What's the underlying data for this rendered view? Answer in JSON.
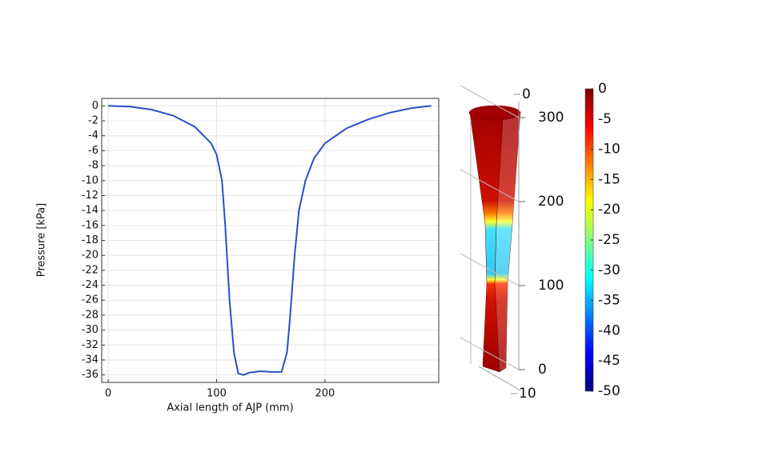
{
  "chart_data": [
    {
      "type": "line",
      "x_label": "Axial length of AJP (mm)",
      "y_label": "Pressure [kPa]",
      "x": [
        0,
        20,
        40,
        60,
        80,
        95,
        100,
        105,
        108,
        112,
        116,
        120,
        125,
        130,
        140,
        150,
        160,
        165,
        168,
        172,
        176,
        182,
        190,
        200,
        220,
        240,
        260,
        280,
        298
      ],
      "values": [
        0,
        -0.1,
        -0.5,
        -1.3,
        -2.8,
        -5,
        -6.5,
        -10,
        -16,
        -26,
        -33,
        -35.8,
        -36,
        -35.7,
        -35.5,
        -35.6,
        -35.6,
        -33,
        -28,
        -20,
        -14,
        -10,
        -7,
        -5,
        -3,
        -1.8,
        -0.9,
        -0.3,
        0
      ],
      "color": "#2a4fc9",
      "xlim": [
        -6,
        305
      ],
      "xticks": [
        0,
        100,
        200
      ],
      "ylim": [
        -37,
        1
      ],
      "yticks": [
        0,
        -2,
        -4,
        -6,
        -8,
        -10,
        -12,
        -14,
        -16,
        -18,
        -20,
        -22,
        -24,
        -26,
        -28,
        -30,
        -32,
        -34,
        -36
      ],
      "grid": true
    },
    {
      "type": "colorbar",
      "clim": [
        -50,
        0
      ],
      "ticks": [
        0,
        -5,
        -10,
        -15,
        -20,
        -25,
        -30,
        -35,
        -40,
        -45,
        -50
      ],
      "colors": [
        "#00007f",
        "#0000ff",
        "#0080ff",
        "#00ffff",
        "#80ff80",
        "#ffff00",
        "#ff8000",
        "#ff0000",
        "#7f0000"
      ]
    },
    {
      "type": "surface3d",
      "zlim": [
        0,
        300
      ],
      "zticks": [
        0,
        100,
        200,
        300
      ],
      "ylim": [
        0,
        10
      ],
      "yticks": [
        0,
        10
      ]
    }
  ]
}
